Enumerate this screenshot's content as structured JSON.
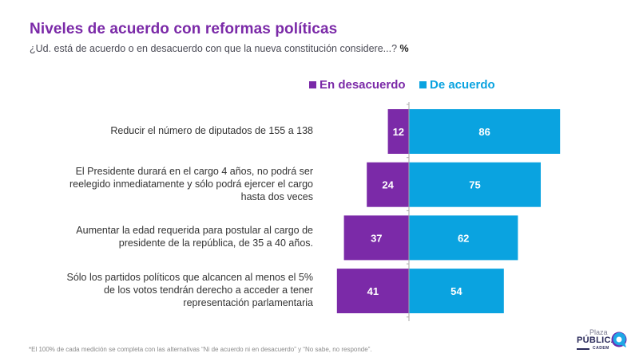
{
  "header": {
    "title": "Niveles de acuerdo con reformas políticas",
    "subtitle": "¿Ud. está de acuerdo o en desacuerdo con que la nueva constitución considere...?",
    "subtitle_unit": "%"
  },
  "footnote": "*El 100% de cada medición se completa con las alternativas “Ni de acuerdo ni en desacuerdo” y  “No sabe, no responde”.",
  "logo": {
    "line1": "Plaza",
    "line2": "PÚBLICA",
    "line3": "CADEM"
  },
  "chart_data": {
    "type": "bar",
    "orientation": "horizontal-diverging",
    "title": "Niveles de acuerdo con reformas políticas",
    "unit": "%",
    "legend_position": "top",
    "categories": [
      "Reducir el número de diputados de 155 a 138",
      "El Presidente durará en el cargo 4 años, no podrá ser reelegido inmediatamente y sólo podrá ejercer el cargo hasta dos veces",
      "Aumentar la edad requerida para postular al cargo de presidente de la república, de 35 a 40 años.",
      "Sólo los partidos políticos que alcancen al menos el 5% de los votos tendrán derecho a acceder a tener representación parlamentaria"
    ],
    "category_lines": [
      [
        "Reducir el número de diputados de 155 a 138"
      ],
      [
        "El Presidente durará en el cargo 4 años, no podrá ser",
        "reelegido inmediatamente y sólo podrá ejercer el cargo",
        "hasta dos veces"
      ],
      [
        "Aumentar la edad requerida para postular al cargo de",
        "presidente de la república, de 35 a 40 años."
      ],
      [
        "Sólo los partidos políticos que alcancen al menos el 5%",
        "de los votos tendrán derecho a acceder a tener",
        "representación parlamentaria"
      ]
    ],
    "series": [
      {
        "name": "En desacuerdo",
        "color": "#7B2AA8",
        "values": [
          12,
          24,
          37,
          41
        ]
      },
      {
        "name": "De acuerdo",
        "color": "#0AA3E0",
        "values": [
          86,
          75,
          62,
          54
        ]
      }
    ],
    "xlim": [
      -45,
      90
    ],
    "grid": false
  }
}
